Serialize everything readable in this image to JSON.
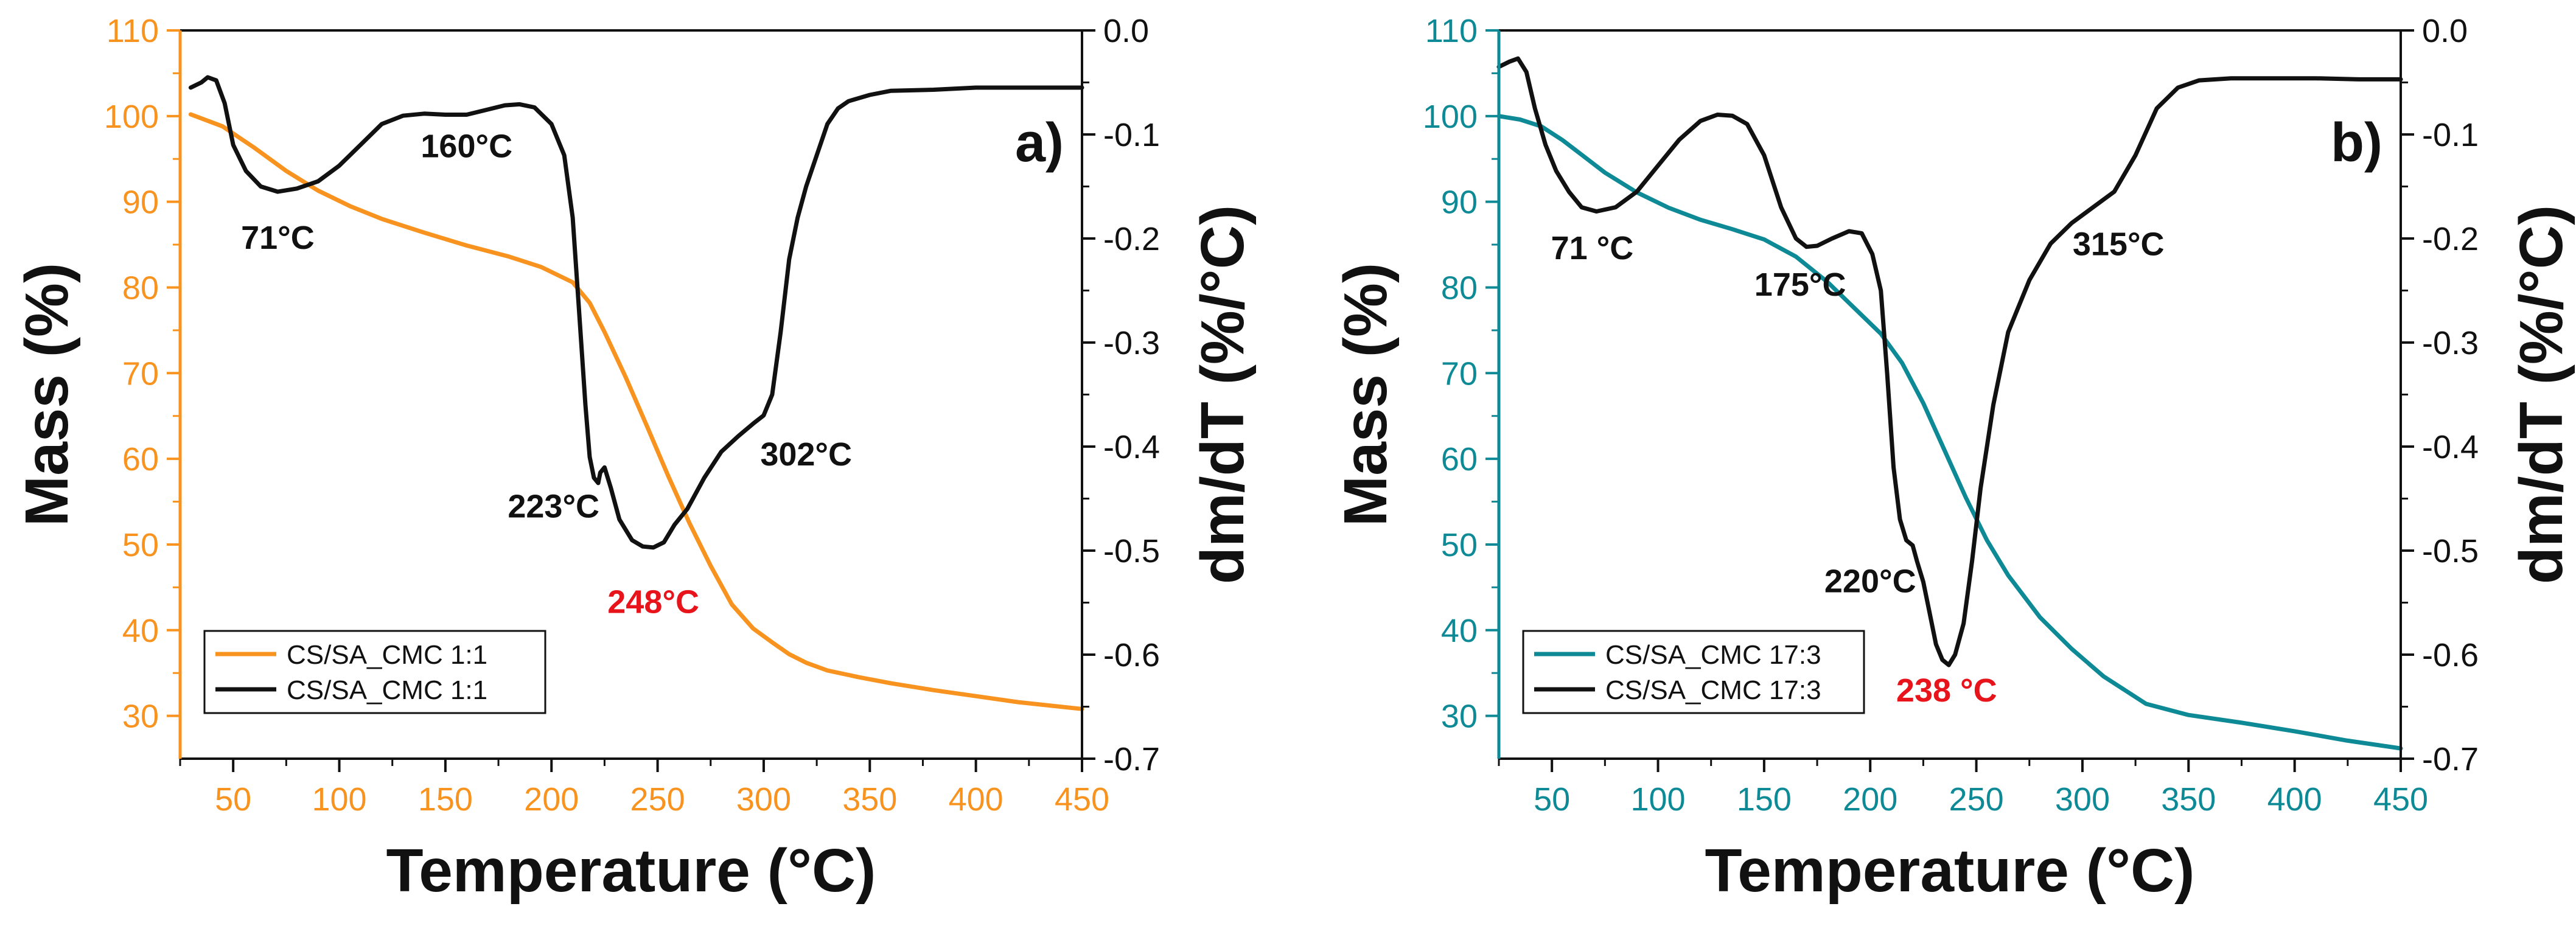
{
  "chart_data": [
    {
      "type": "line",
      "panel_label": "a)",
      "xlabel": "Temperature (°C)",
      "ylabel_left": "Mass (%)",
      "ylabel_right": "dm/dT (%/°C)",
      "xlim": [
        25,
        450
      ],
      "ylim_left": [
        25,
        110
      ],
      "ylim_right": [
        -0.7,
        0.0
      ],
      "x_ticks": [
        50,
        100,
        150,
        200,
        250,
        300,
        350,
        400,
        450
      ],
      "y_left_ticks": [
        30,
        40,
        50,
        60,
        70,
        80,
        90,
        100,
        110
      ],
      "y_right_ticks": [
        0.0,
        -0.1,
        -0.2,
        -0.3,
        -0.4,
        -0.5,
        -0.6,
        -0.7
      ],
      "y_right_tick_labels": [
        "0.0",
        "-0.1",
        "-0.2",
        "-0.3",
        "-0.4",
        "-0.5",
        "-0.6",
        "-0.7"
      ],
      "left_axis_color": "#f7931e",
      "series": [
        {
          "name": "CS/SA_CMC 1:1",
          "axis": "left",
          "color": "#f7931e",
          "x": [
            30,
            45,
            60,
            75,
            90,
            105,
            120,
            140,
            160,
            180,
            195,
            210,
            218,
            225,
            235,
            245,
            255,
            265,
            275,
            285,
            295,
            305,
            312,
            320,
            330,
            345,
            360,
            380,
            400,
            420,
            450
          ],
          "y": [
            100.2,
            98.8,
            96.3,
            93.6,
            91.3,
            89.5,
            88.0,
            86.4,
            84.9,
            83.6,
            82.4,
            80.6,
            78.2,
            74.8,
            69.5,
            63.8,
            58.0,
            52.5,
            47.5,
            43.0,
            40.2,
            38.4,
            37.2,
            36.2,
            35.3,
            34.5,
            33.8,
            33.0,
            32.3,
            31.6,
            30.8
          ]
        },
        {
          "name": "CS/SA_CMC 1:1",
          "axis": "right",
          "color": "#111111",
          "x": [
            30,
            35,
            38,
            42,
            46,
            50,
            56,
            63,
            71,
            80,
            90,
            100,
            110,
            120,
            130,
            140,
            150,
            160,
            170,
            178,
            185,
            192,
            200,
            206,
            210,
            213,
            216,
            218,
            220,
            222,
            223,
            225,
            228,
            232,
            238,
            243,
            248,
            253,
            258,
            264,
            272,
            280,
            288,
            295,
            300,
            304,
            308,
            312,
            316,
            320,
            325,
            330,
            335,
            340,
            350,
            360,
            380,
            400,
            420,
            450
          ],
          "y": [
            -0.055,
            -0.05,
            -0.045,
            -0.048,
            -0.07,
            -0.11,
            -0.135,
            -0.15,
            -0.155,
            -0.152,
            -0.145,
            -0.13,
            -0.11,
            -0.09,
            -0.082,
            -0.08,
            -0.081,
            -0.081,
            -0.076,
            -0.072,
            -0.071,
            -0.074,
            -0.09,
            -0.12,
            -0.18,
            -0.27,
            -0.36,
            -0.41,
            -0.43,
            -0.435,
            -0.425,
            -0.42,
            -0.44,
            -0.47,
            -0.49,
            -0.496,
            -0.497,
            -0.492,
            -0.475,
            -0.46,
            -0.43,
            -0.405,
            -0.39,
            -0.378,
            -0.37,
            -0.35,
            -0.29,
            -0.22,
            -0.18,
            -0.15,
            -0.12,
            -0.09,
            -0.075,
            -0.068,
            -0.062,
            -0.058,
            -0.057,
            -0.055,
            -0.055,
            -0.055
          ]
        }
      ],
      "annotations": [
        {
          "text": "71°C",
          "x": 71,
          "y": -0.21,
          "axis": "right",
          "color": "#111111"
        },
        {
          "text": "160°C",
          "x": 160,
          "y": -0.122,
          "axis": "right",
          "color": "#111111"
        },
        {
          "text": "223°C",
          "x": 201,
          "y": -0.468,
          "axis": "right",
          "color": "#111111"
        },
        {
          "text": "302°C",
          "x": 320,
          "y": -0.418,
          "axis": "right",
          "color": "#111111"
        },
        {
          "text": "248°C",
          "x": 248,
          "y": -0.56,
          "axis": "right",
          "color": "#e8141c"
        }
      ],
      "legend": {
        "placement": "bottom-left",
        "entries": [
          "CS/SA_CMC 1:1",
          "CS/SA_CMC 1:1"
        ]
      }
    },
    {
      "type": "line",
      "panel_label": "b)",
      "xlabel": "Temperature (°C)",
      "ylabel_left": "Mass (%)",
      "ylabel_right": "dm/dT (%/°C)",
      "xlim": [
        25,
        450
      ],
      "ylim_left": [
        25,
        110
      ],
      "ylim_right": [
        -0.7,
        0.0
      ],
      "x_ticks": [
        50,
        100,
        150,
        200,
        250,
        300,
        350,
        400,
        450
      ],
      "y_left_ticks": [
        30,
        40,
        50,
        60,
        70,
        80,
        90,
        100,
        110
      ],
      "y_right_ticks": [
        0.0,
        -0.1,
        -0.2,
        -0.3,
        -0.4,
        -0.5,
        -0.6,
        -0.7
      ],
      "y_right_tick_labels": [
        "0.0",
        "-0.1",
        "-0.2",
        "-0.3",
        "-0.4",
        "-0.5",
        "-0.6",
        "-0.7"
      ],
      "left_axis_color": "#0e8a96",
      "series": [
        {
          "name": "CS/SA_CMC 17:3",
          "axis": "left",
          "color": "#0e8a96",
          "x": [
            25,
            35,
            45,
            55,
            65,
            75,
            90,
            105,
            120,
            135,
            150,
            165,
            180,
            195,
            205,
            215,
            225,
            235,
            245,
            255,
            265,
            280,
            295,
            310,
            330,
            350,
            375,
            400,
            425,
            450
          ],
          "y": [
            100.0,
            99.6,
            98.8,
            97.2,
            95.3,
            93.4,
            91.1,
            89.3,
            87.9,
            86.8,
            85.6,
            83.6,
            80.6,
            77.0,
            74.6,
            71.2,
            66.5,
            61.0,
            55.5,
            50.5,
            46.4,
            41.5,
            37.8,
            34.6,
            31.4,
            30.1,
            29.2,
            28.2,
            27.1,
            26.2
          ]
        },
        {
          "name": "CS/SA_CMC 17:3",
          "axis": "right",
          "color": "#111111",
          "x": [
            25,
            30,
            34,
            38,
            42,
            47,
            52,
            58,
            64,
            71,
            80,
            90,
            100,
            110,
            120,
            128,
            135,
            142,
            150,
            158,
            165,
            170,
            175,
            182,
            190,
            196,
            201,
            205,
            208,
            211,
            214,
            217,
            220,
            222,
            225,
            228,
            231,
            234,
            237,
            240,
            244,
            248,
            252,
            258,
            265,
            275,
            285,
            295,
            305,
            315,
            325,
            335,
            345,
            355,
            370,
            390,
            410,
            430,
            450
          ],
          "y": [
            -0.035,
            -0.03,
            -0.027,
            -0.04,
            -0.075,
            -0.11,
            -0.135,
            -0.155,
            -0.17,
            -0.174,
            -0.17,
            -0.155,
            -0.13,
            -0.105,
            -0.087,
            -0.081,
            -0.082,
            -0.09,
            -0.12,
            -0.17,
            -0.2,
            -0.208,
            -0.207,
            -0.2,
            -0.193,
            -0.195,
            -0.215,
            -0.25,
            -0.33,
            -0.42,
            -0.47,
            -0.49,
            -0.495,
            -0.51,
            -0.53,
            -0.56,
            -0.59,
            -0.605,
            -0.61,
            -0.6,
            -0.57,
            -0.51,
            -0.44,
            -0.36,
            -0.29,
            -0.24,
            -0.205,
            -0.185,
            -0.17,
            -0.155,
            -0.12,
            -0.075,
            -0.055,
            -0.048,
            -0.046,
            -0.046,
            -0.046,
            -0.047,
            -0.047
          ]
        }
      ],
      "annotations": [
        {
          "text": "71 °C",
          "x": 69,
          "y": -0.22,
          "axis": "right",
          "color": "#111111"
        },
        {
          "text": "175°C",
          "x": 167,
          "y": -0.255,
          "axis": "right",
          "color": "#111111"
        },
        {
          "text": "220°C",
          "x": 200,
          "y": -0.54,
          "axis": "right",
          "color": "#111111"
        },
        {
          "text": "315°C",
          "x": 317,
          "y": -0.216,
          "axis": "right",
          "color": "#111111"
        },
        {
          "text": "238 °C",
          "x": 236,
          "y": -0.645,
          "axis": "right",
          "color": "#e8141c"
        }
      ],
      "legend": {
        "placement": "bottom-left",
        "entries": [
          "CS/SA_CMC 17:3",
          "CS/SA_CMC 17:3"
        ]
      }
    }
  ]
}
